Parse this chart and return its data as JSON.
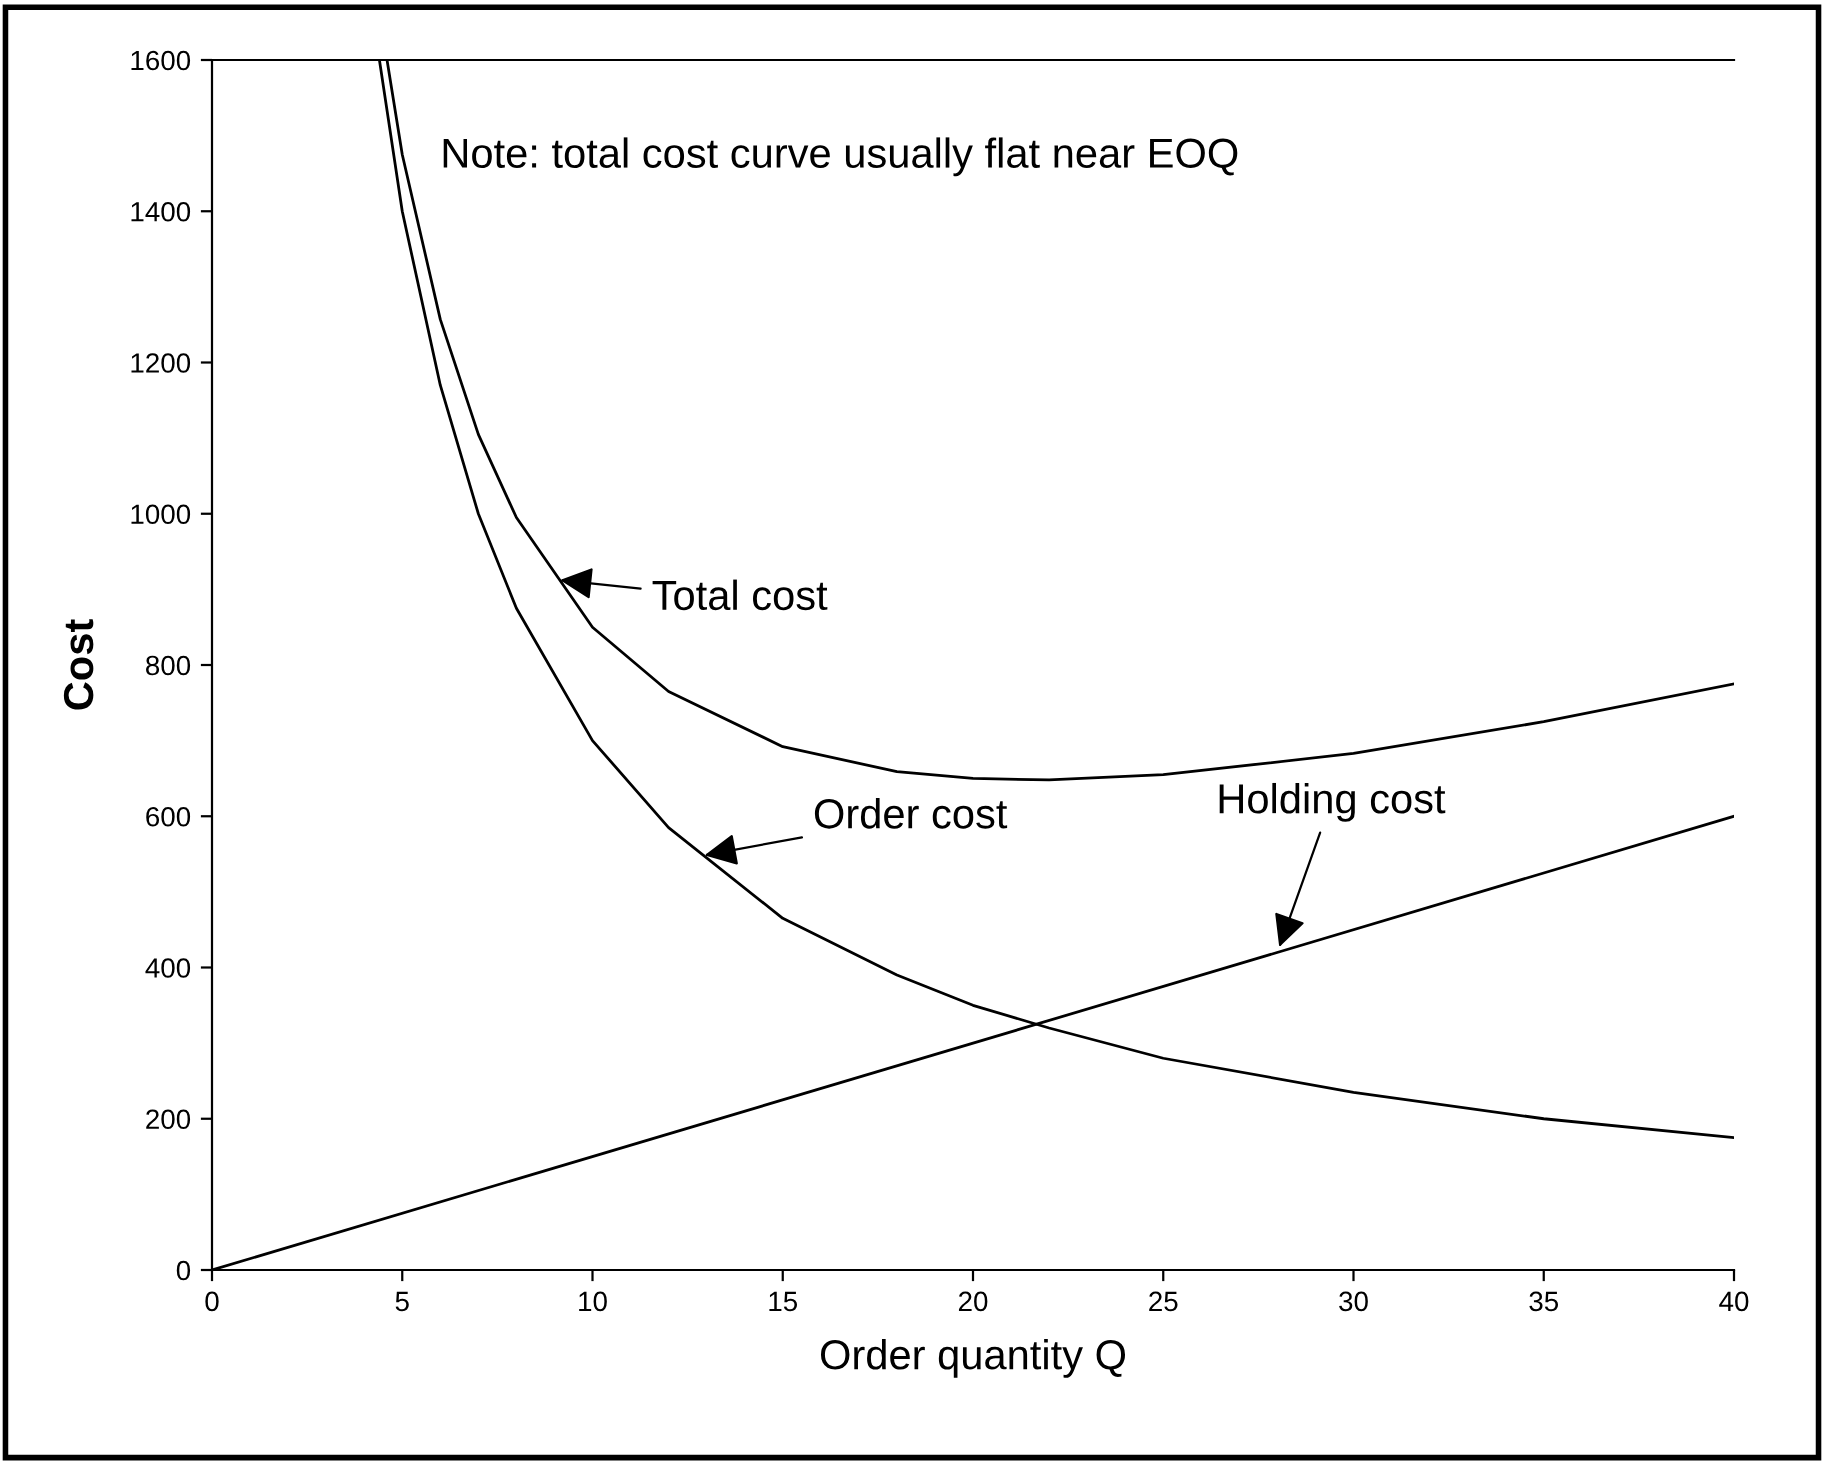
{
  "chart_data": {
    "type": "line",
    "xlabel": "Order quantity Q",
    "ylabel": "Cost",
    "xlim": [
      0,
      40
    ],
    "ylim": [
      0,
      1600
    ],
    "xticks": [
      0,
      5,
      10,
      15,
      20,
      25,
      30,
      35,
      40
    ],
    "yticks": [
      0,
      200,
      400,
      600,
      800,
      1000,
      1200,
      1400,
      1600
    ],
    "grid": false,
    "legend": false,
    "marker": "none",
    "line_style": "solid",
    "series": [
      {
        "color": "#000000",
        "x": [
          4.6,
          5,
          6,
          7,
          8,
          10,
          12,
          15,
          18,
          20,
          22,
          25,
          30,
          35,
          40
        ],
        "values": [
          1600,
          1475,
          1257,
          1105,
          995,
          850,
          765,
          692,
          659,
          650,
          648,
          655,
          683,
          725,
          775
        ]
      },
      {
        "color": "#000000",
        "x": [
          4.4,
          5,
          6,
          7,
          8,
          10,
          12,
          15,
          18,
          20,
          22,
          25,
          30,
          35,
          40
        ],
        "values": [
          1600,
          1400,
          1170,
          1000,
          875,
          700,
          585,
          465,
          390,
          350,
          320,
          280,
          235,
          200,
          175
        ]
      },
      {
        "color": "#000000",
        "x": [
          0,
          40
        ],
        "values": [
          0,
          600
        ]
      }
    ],
    "annotations": [
      "Note: total cost curve usually flat near EOQ",
      {
        "text": "Total cost",
        "x": 9,
        "y": 913
      },
      {
        "text": "Order cost",
        "x": 12.8,
        "y": 547
      },
      {
        "text": "Holding cost",
        "x": 28,
        "y": 420
      }
    ]
  }
}
